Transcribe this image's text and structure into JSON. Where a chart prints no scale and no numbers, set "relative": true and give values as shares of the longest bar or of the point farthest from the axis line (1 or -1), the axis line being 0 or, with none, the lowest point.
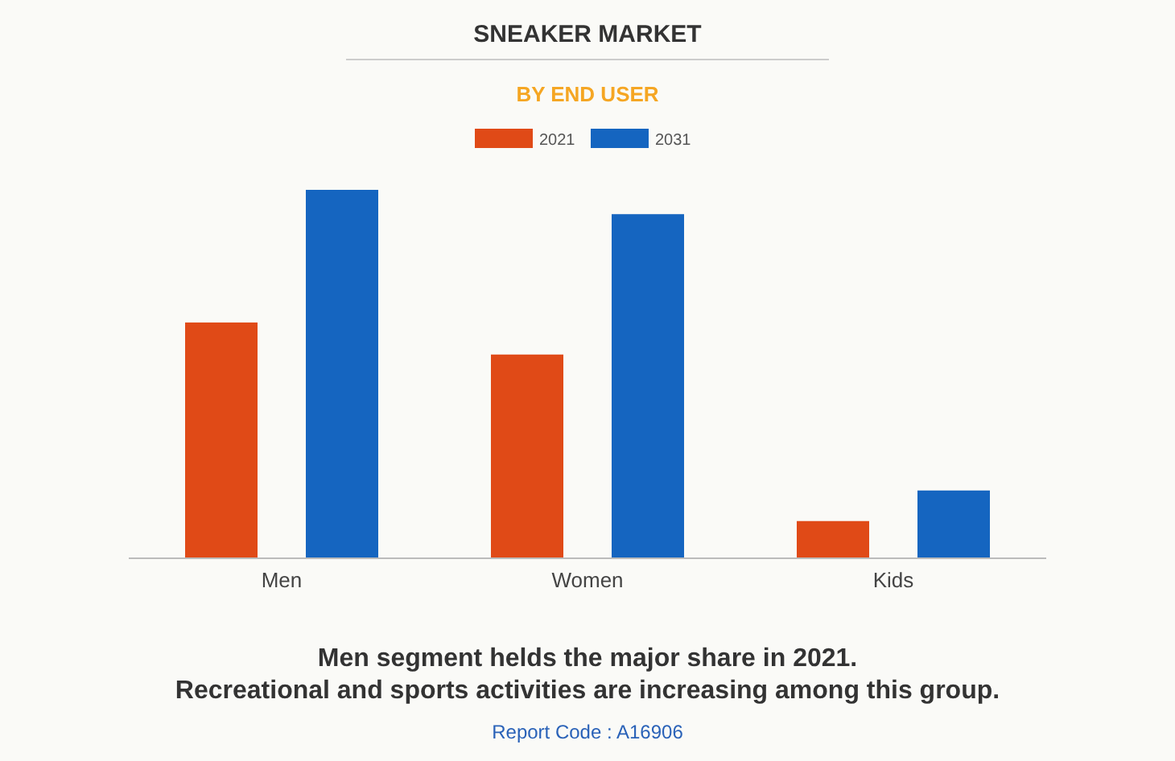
{
  "chart_data": {
    "type": "bar",
    "title": "SNEAKER MARKET",
    "subtitle": "BY END USER",
    "categories": [
      "Men",
      "Women",
      "Kids"
    ],
    "relative": true,
    "legend": "top",
    "series": [
      {
        "name": "2021",
        "color": "#e04a17",
        "values": [
          0.64,
          0.553,
          0.101
        ]
      },
      {
        "name": "2031",
        "color": "#1565c0",
        "values": [
          1,
          0.934,
          0.184
        ]
      }
    ],
    "annotations": [
      "Men segment helds the major share in 2021. Recreational and sports activities are increasing among this group.",
      "Report Code : A16906"
    ]
  }
}
